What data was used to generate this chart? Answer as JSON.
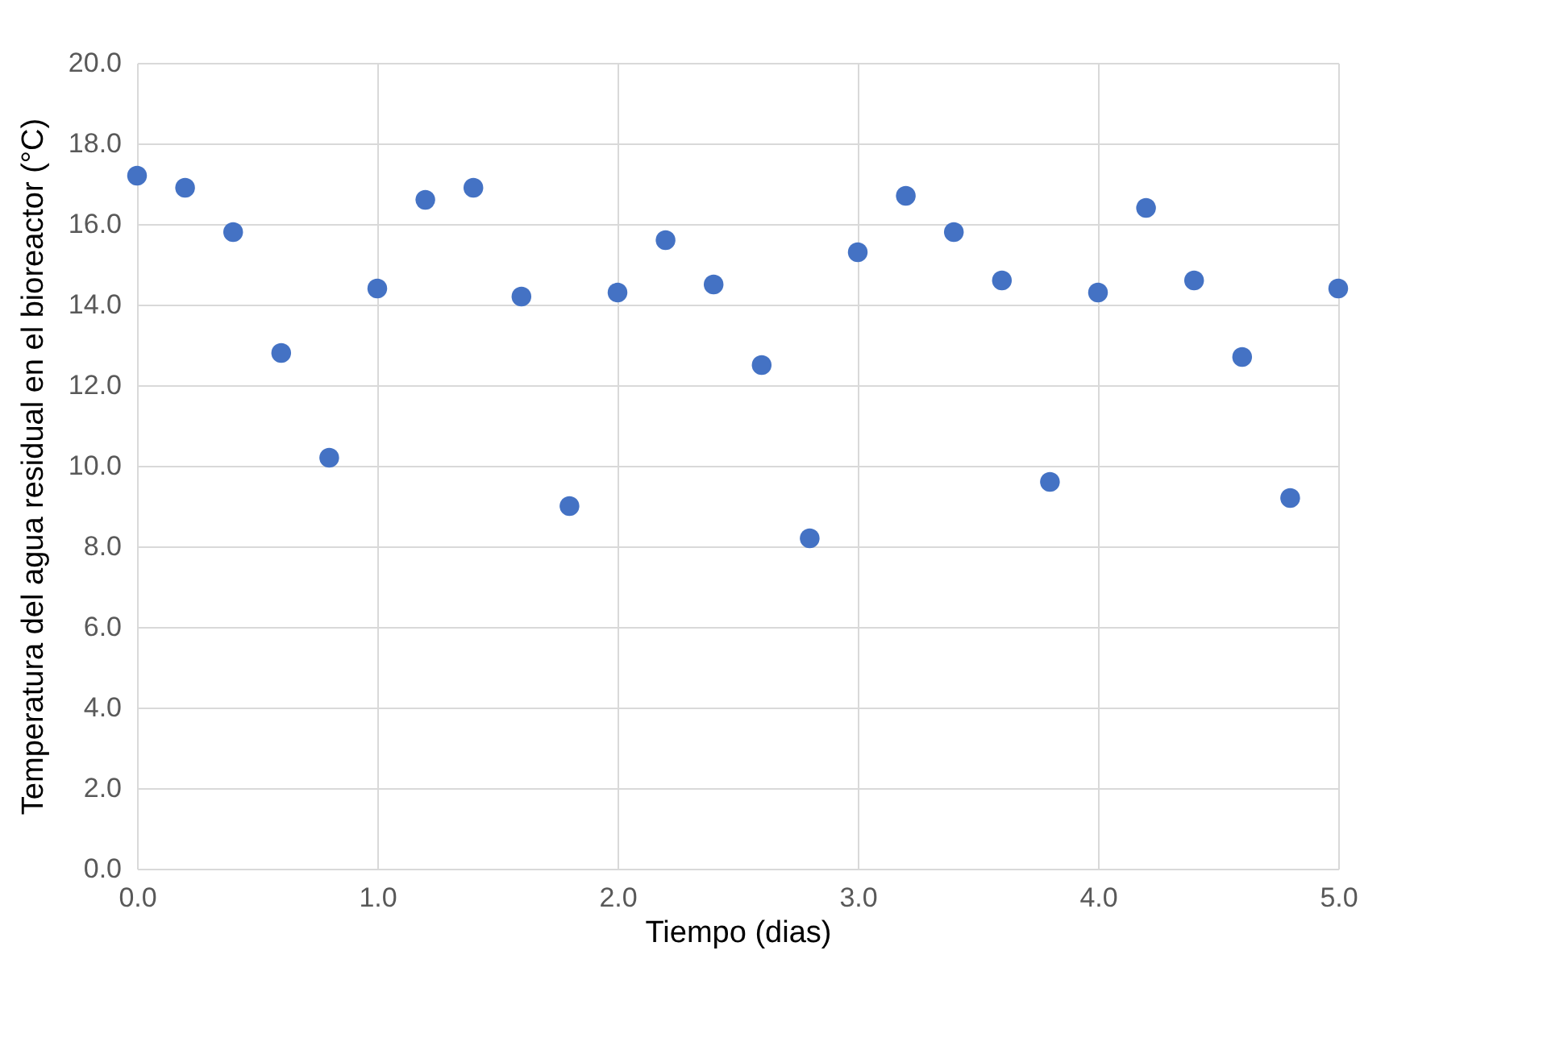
{
  "chart_data": {
    "type": "scatter",
    "xlabel": "Tiempo (dias)",
    "ylabel": "Temperatura del agua residual en el bioreactor (°C)",
    "x": [
      0.0,
      0.2,
      0.4,
      0.6,
      0.8,
      1.0,
      1.2,
      1.4,
      1.6,
      1.8,
      2.0,
      2.2,
      2.4,
      2.6,
      2.8,
      3.0,
      3.2,
      3.4,
      3.6,
      3.8,
      4.0,
      4.2,
      4.4,
      4.6,
      4.8,
      5.0
    ],
    "series": [
      {
        "color": "#4472c4",
        "values": [
          17.2,
          16.9,
          15.8,
          12.8,
          10.2,
          14.4,
          16.6,
          16.9,
          14.2,
          9.0,
          14.3,
          15.6,
          14.5,
          12.5,
          8.2,
          15.3,
          16.7,
          15.8,
          14.6,
          9.6,
          14.3,
          16.4,
          14.6,
          12.7,
          9.2,
          14.4
        ]
      }
    ],
    "xlim": [
      0,
      5
    ],
    "xticks": [
      {
        "value": 0,
        "label": "0.0"
      },
      {
        "value": 1,
        "label": "1.0"
      },
      {
        "value": 2,
        "label": "2.0"
      },
      {
        "value": 3,
        "label": "3.0"
      },
      {
        "value": 4,
        "label": "4.0"
      },
      {
        "value": 5,
        "label": "5.0"
      }
    ],
    "ylim": [
      0,
      20
    ],
    "yticks": [
      {
        "value": 0,
        "label": "0.0"
      },
      {
        "value": 2,
        "label": "2.0"
      },
      {
        "value": 4,
        "label": "4.0"
      },
      {
        "value": 6,
        "label": "6.0"
      },
      {
        "value": 8,
        "label": "8.0"
      },
      {
        "value": 10,
        "label": "10.0"
      },
      {
        "value": 12,
        "label": "12.0"
      },
      {
        "value": 14,
        "label": "14.0"
      },
      {
        "value": 16,
        "label": "16.0"
      },
      {
        "value": 18,
        "label": "18.0"
      },
      {
        "value": 20,
        "label": "20.0"
      }
    ],
    "grid": true,
    "marker": "circle"
  }
}
